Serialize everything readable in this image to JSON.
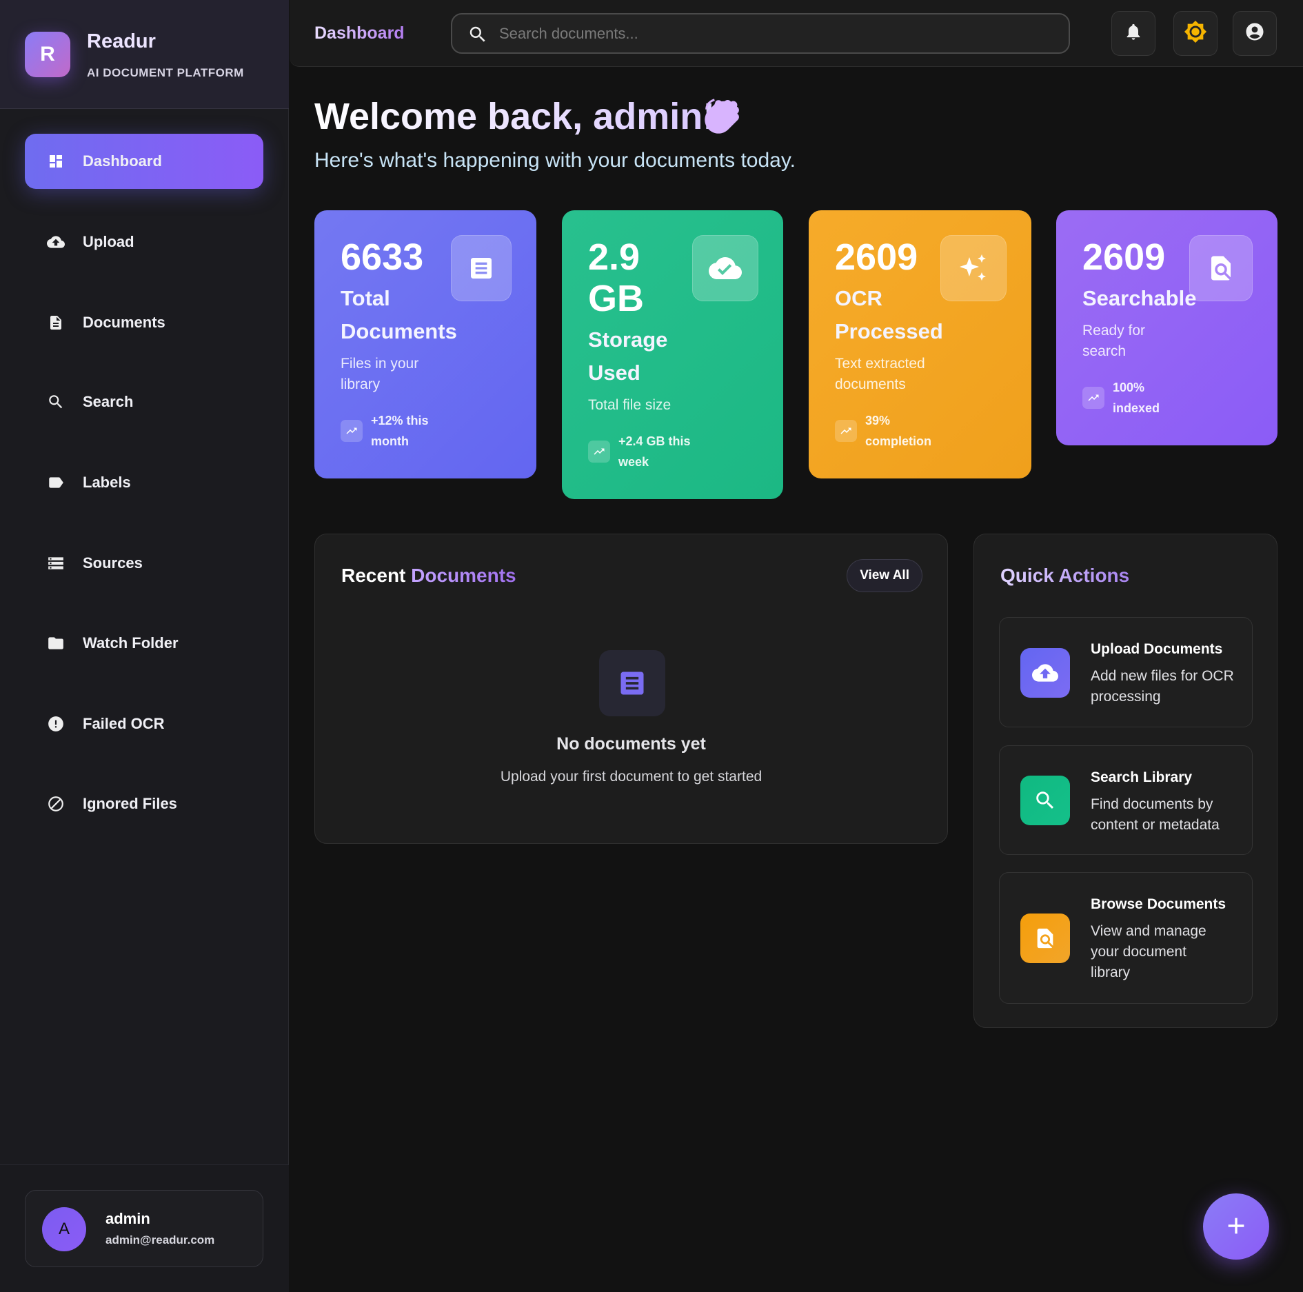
{
  "brand": {
    "logo_letter": "R",
    "name": "Readur",
    "subtitle": "AI DOCUMENT PLATFORM"
  },
  "sidebar": {
    "items": [
      {
        "label": "Dashboard",
        "icon": "dashboard-icon",
        "active": true
      },
      {
        "label": "Upload",
        "icon": "cloud-upload-icon"
      },
      {
        "label": "Documents",
        "icon": "document-icon"
      },
      {
        "label": "Search",
        "icon": "search-icon"
      },
      {
        "label": "Labels",
        "icon": "label-icon"
      },
      {
        "label": "Sources",
        "icon": "storage-icon"
      },
      {
        "label": "Watch Folder",
        "icon": "folder-icon"
      },
      {
        "label": "Failed OCR",
        "icon": "error-icon"
      },
      {
        "label": "Ignored Files",
        "icon": "block-icon"
      }
    ]
  },
  "user": {
    "initial": "A",
    "name": "admin",
    "email": "admin@readur.com"
  },
  "header": {
    "title": "Dashboard",
    "search_placeholder": "Search documents...",
    "buttons": [
      "bell-icon",
      "sun-icon",
      "account-icon"
    ]
  },
  "welcome": {
    "title": "Welcome back, admin!",
    "subtitle": "Here's what's happening with your documents today."
  },
  "stats": [
    {
      "value": "6633",
      "label": "Total Documents",
      "desc": "Files in your library",
      "trend": "+12% this month",
      "icon": "document-icon",
      "color": "#6f6cf0"
    },
    {
      "value": "2.9 GB",
      "label": "Storage Used",
      "desc": "Total file size",
      "trend": "+2.4 GB this week",
      "icon": "cloud-done-icon",
      "color": "#22bf8a"
    },
    {
      "value": "2609",
      "label": "OCR Processed",
      "desc": "Text extracted documents",
      "trend": "39% completion",
      "icon": "sparkle-icon",
      "color": "#f3a51f"
    },
    {
      "value": "2609",
      "label": "Searchable",
      "desc": "Ready for search",
      "trend": "100% indexed",
      "icon": "find-in-page-icon",
      "color": "#9566f2"
    }
  ],
  "recent": {
    "title_a": "Recent",
    "title_b": "Documents",
    "view_all": "View All",
    "empty_title": "No documents yet",
    "empty_desc": "Upload your first document to get started"
  },
  "quick": {
    "title": "Quick Actions",
    "items": [
      {
        "title": "Upload Documents",
        "desc": "Add new files for OCR processing",
        "icon": "cloud-upload-icon",
        "color": "#6366f1"
      },
      {
        "title": "Search Library",
        "desc": "Find documents by content or metadata",
        "icon": "search-icon",
        "color": "#10b981"
      },
      {
        "title": "Browse Documents",
        "desc": "View and manage your document library",
        "icon": "find-in-page-icon",
        "color": "#f59e0b"
      }
    ]
  }
}
